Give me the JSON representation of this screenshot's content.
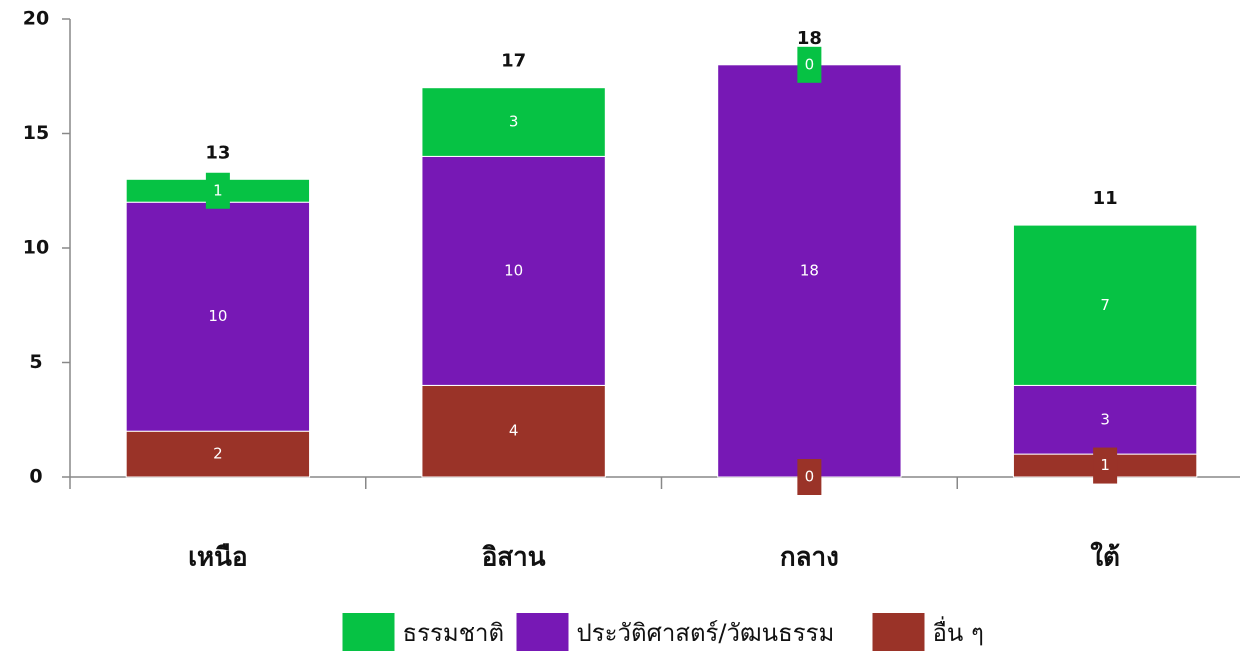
{
  "chart_data": {
    "type": "stacked_bar",
    "categories": [
      "เหนือ",
      "อิสาน",
      "กลาง",
      "ใต้"
    ],
    "series": [
      {
        "name": "ธรรมชาติ",
        "color": "#06c244",
        "values": [
          1,
          3,
          0,
          7
        ]
      },
      {
        "name": "ประวัติศาสตร์/วัฒนธรรม",
        "color": "#7718b5",
        "values": [
          10,
          10,
          18,
          3
        ]
      },
      {
        "name": "อื่น ๆ",
        "color": "#9a3328",
        "values": [
          2,
          4,
          0,
          1
        ]
      }
    ],
    "totals": [
      13,
      17,
      18,
      11
    ],
    "ylim": [
      0,
      20
    ],
    "yticks": [
      0,
      5,
      10,
      15,
      20
    ],
    "grid": false,
    "legend": "bottom"
  }
}
